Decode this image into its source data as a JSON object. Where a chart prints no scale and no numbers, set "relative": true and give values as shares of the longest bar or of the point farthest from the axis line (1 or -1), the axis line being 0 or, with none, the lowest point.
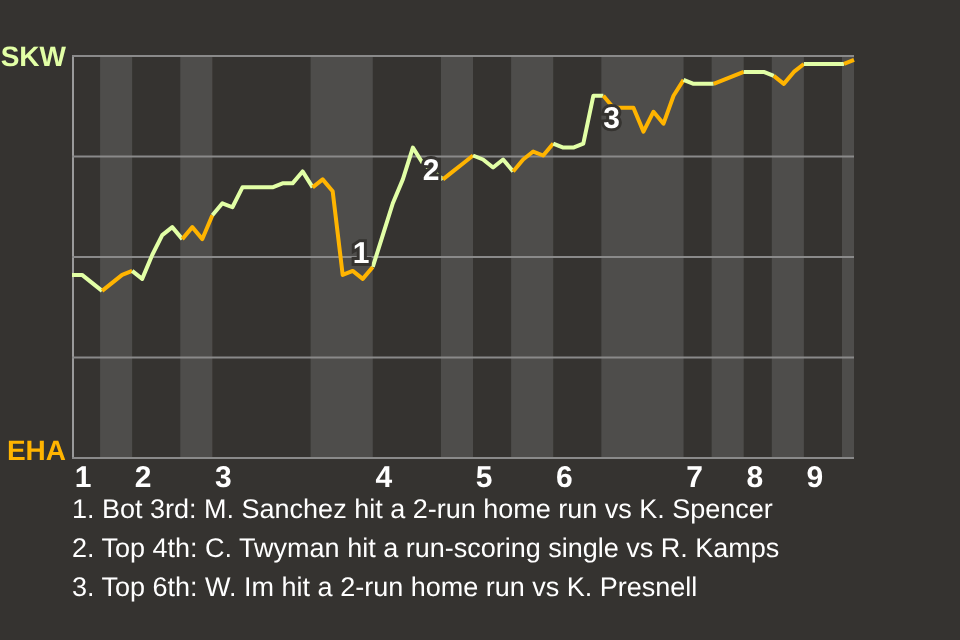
{
  "chart_data": {
    "type": "line",
    "relative": true,
    "categories": [
      null,
      "1",
      null,
      null,
      null,
      null,
      null,
      "2",
      null,
      null,
      null,
      null,
      null,
      null,
      null,
      "3",
      null,
      null,
      null,
      null,
      null,
      null,
      null,
      null,
      null,
      null,
      null,
      null,
      null,
      null,
      null,
      "4",
      null,
      null,
      null,
      null,
      null,
      null,
      null,
      null,
      null,
      "5",
      null,
      null,
      null,
      null,
      null,
      null,
      null,
      "6",
      null,
      null,
      null,
      null,
      null,
      null,
      null,
      null,
      null,
      null,
      null,
      null,
      "7",
      null,
      null,
      null,
      null,
      null,
      "8",
      null,
      null,
      null,
      null,
      null,
      "9",
      null,
      null,
      null,
      null
    ],
    "grid": "y",
    "marker": "none",
    "line_style": "solid",
    "series": [
      {
        "color": "#e2ffa6",
        "values": [
          0.46,
          0.46,
          0.44,
          0.42,
          null,
          null,
          null,
          null,
          null,
          null,
          null,
          null,
          null,
          null,
          null,
          null,
          null,
          null,
          null,
          null,
          null,
          null,
          null,
          null,
          null,
          null,
          null,
          null,
          null,
          null,
          null,
          null,
          null,
          null,
          null,
          null,
          null,
          null,
          null,
          null,
          null,
          null,
          null,
          null,
          null,
          null,
          null,
          null,
          null,
          null,
          null,
          null,
          null,
          null,
          null,
          null,
          null,
          null,
          null,
          null,
          null,
          null,
          null,
          null,
          null,
          null,
          null,
          null,
          null,
          null,
          null,
          null,
          null,
          null,
          null,
          null,
          null,
          null,
          null
        ]
      },
      {
        "color": "#ffb400",
        "values": [
          null,
          null,
          null,
          0.42,
          0.44,
          0.46,
          0.47,
          null,
          null,
          null,
          null,
          null,
          null,
          null,
          null,
          null,
          null,
          null,
          null,
          null,
          null,
          null,
          null,
          null,
          null,
          null,
          null,
          null,
          null,
          null,
          null,
          null,
          null,
          null,
          null,
          null,
          null,
          null,
          null,
          null,
          null,
          null,
          null,
          null,
          null,
          null,
          null,
          null,
          null,
          null,
          null,
          null,
          null,
          null,
          null,
          null,
          null,
          null,
          null,
          null,
          null,
          null,
          null,
          null,
          null,
          null,
          null,
          null,
          null,
          null,
          null,
          null,
          null,
          null,
          null,
          null,
          null,
          null,
          null
        ]
      },
      {
        "color": "#e2ffa6",
        "values": [
          null,
          null,
          null,
          null,
          null,
          null,
          0.47,
          0.45,
          0.51,
          0.56,
          0.58,
          0.55,
          null,
          null,
          null,
          null,
          null,
          null,
          null,
          null,
          null,
          null,
          null,
          null,
          null,
          null,
          null,
          null,
          null,
          null,
          null,
          null,
          null,
          null,
          null,
          null,
          null,
          null,
          null,
          null,
          null,
          null,
          null,
          null,
          null,
          null,
          null,
          null,
          null,
          null,
          null,
          null,
          null,
          null,
          null,
          null,
          null,
          null,
          null,
          null,
          null,
          null,
          null,
          null,
          null,
          null,
          null,
          null,
          null,
          null,
          null,
          null,
          null,
          null,
          null,
          null,
          null,
          null,
          null
        ]
      },
      {
        "color": "#ffb400",
        "values": [
          null,
          null,
          null,
          null,
          null,
          null,
          null,
          null,
          null,
          null,
          null,
          0.55,
          0.58,
          0.55,
          0.61,
          null,
          null,
          null,
          null,
          null,
          null,
          null,
          null,
          null,
          null,
          null,
          null,
          null,
          null,
          null,
          null,
          null,
          null,
          null,
          null,
          null,
          null,
          null,
          null,
          null,
          null,
          null,
          null,
          null,
          null,
          null,
          null,
          null,
          null,
          null,
          null,
          null,
          null,
          null,
          null,
          null,
          null,
          null,
          null,
          null,
          null,
          null,
          null,
          null,
          null,
          null,
          null,
          null,
          null,
          null,
          null,
          null,
          null,
          null,
          null,
          null,
          null,
          null,
          null
        ]
      },
      {
        "color": "#e2ffa6",
        "values": [
          null,
          null,
          null,
          null,
          null,
          null,
          null,
          null,
          null,
          null,
          null,
          null,
          null,
          null,
          0.61,
          0.64,
          0.63,
          0.68,
          0.68,
          0.68,
          0.68,
          0.69,
          0.69,
          0.72,
          0.68,
          null,
          null,
          null,
          null,
          null,
          null,
          null,
          null,
          null,
          null,
          null,
          null,
          null,
          null,
          null,
          null,
          null,
          null,
          null,
          null,
          null,
          null,
          null,
          null,
          null,
          null,
          null,
          null,
          null,
          null,
          null,
          null,
          null,
          null,
          null,
          null,
          null,
          null,
          null,
          null,
          null,
          null,
          null,
          null,
          null,
          null,
          null,
          null,
          null,
          null,
          null,
          null,
          null,
          null
        ]
      },
      {
        "color": "#ffb400",
        "values": [
          null,
          null,
          null,
          null,
          null,
          null,
          null,
          null,
          null,
          null,
          null,
          null,
          null,
          null,
          null,
          null,
          null,
          null,
          null,
          null,
          null,
          null,
          null,
          null,
          0.68,
          0.7,
          0.67,
          0.46,
          0.47,
          0.45,
          0.48,
          null,
          null,
          null,
          null,
          null,
          null,
          null,
          null,
          null,
          null,
          null,
          null,
          null,
          null,
          null,
          null,
          null,
          null,
          null,
          null,
          null,
          null,
          null,
          null,
          null,
          null,
          null,
          null,
          null,
          null,
          null,
          null,
          null,
          null,
          null,
          null,
          null,
          null,
          null,
          null,
          null,
          null,
          null,
          null,
          null,
          null,
          null,
          null
        ]
      },
      {
        "color": "#e2ffa6",
        "values": [
          null,
          null,
          null,
          null,
          null,
          null,
          null,
          null,
          null,
          null,
          null,
          null,
          null,
          null,
          null,
          null,
          null,
          null,
          null,
          null,
          null,
          null,
          null,
          null,
          null,
          null,
          null,
          null,
          null,
          null,
          0.48,
          0.56,
          0.64,
          0.7,
          0.78,
          0.74,
          0.72,
          0.7,
          null,
          null,
          null,
          null,
          null,
          null,
          null,
          null,
          null,
          null,
          null,
          null,
          null,
          null,
          null,
          null,
          null,
          null,
          null,
          null,
          null,
          null,
          null,
          null,
          null,
          null,
          null,
          null,
          null,
          null,
          null,
          null,
          null,
          null,
          null,
          null,
          null,
          null,
          null,
          null,
          null
        ]
      },
      {
        "color": "#ffb400",
        "values": [
          null,
          null,
          null,
          null,
          null,
          null,
          null,
          null,
          null,
          null,
          null,
          null,
          null,
          null,
          null,
          null,
          null,
          null,
          null,
          null,
          null,
          null,
          null,
          null,
          null,
          null,
          null,
          null,
          null,
          null,
          null,
          null,
          null,
          null,
          null,
          null,
          null,
          0.7,
          0.72,
          0.74,
          0.76,
          null,
          null,
          null,
          null,
          null,
          null,
          null,
          null,
          null,
          null,
          null,
          null,
          null,
          null,
          null,
          null,
          null,
          null,
          null,
          null,
          null,
          null,
          null,
          null,
          null,
          null,
          null,
          null,
          null,
          null,
          null,
          null,
          null,
          null,
          null,
          null,
          null,
          null
        ]
      },
      {
        "color": "#e2ffa6",
        "values": [
          null,
          null,
          null,
          null,
          null,
          null,
          null,
          null,
          null,
          null,
          null,
          null,
          null,
          null,
          null,
          null,
          null,
          null,
          null,
          null,
          null,
          null,
          null,
          null,
          null,
          null,
          null,
          null,
          null,
          null,
          null,
          null,
          null,
          null,
          null,
          null,
          null,
          null,
          null,
          null,
          0.76,
          0.75,
          0.73,
          0.75,
          0.72,
          null,
          null,
          null,
          null,
          null,
          null,
          null,
          null,
          null,
          null,
          null,
          null,
          null,
          null,
          null,
          null,
          null,
          null,
          null,
          null,
          null,
          null,
          null,
          null,
          null,
          null,
          null,
          null,
          null,
          null,
          null,
          null,
          null,
          null
        ]
      },
      {
        "color": "#ffb400",
        "values": [
          null,
          null,
          null,
          null,
          null,
          null,
          null,
          null,
          null,
          null,
          null,
          null,
          null,
          null,
          null,
          null,
          null,
          null,
          null,
          null,
          null,
          null,
          null,
          null,
          null,
          null,
          null,
          null,
          null,
          null,
          null,
          null,
          null,
          null,
          null,
          null,
          null,
          null,
          null,
          null,
          null,
          null,
          null,
          null,
          0.72,
          0.75,
          0.77,
          0.76,
          0.79,
          null,
          null,
          null,
          null,
          null,
          null,
          null,
          null,
          null,
          null,
          null,
          null,
          null,
          null,
          null,
          null,
          null,
          null,
          null,
          null,
          null,
          null,
          null,
          null,
          null,
          null,
          null,
          null,
          null,
          null
        ]
      },
      {
        "color": "#e2ffa6",
        "values": [
          null,
          null,
          null,
          null,
          null,
          null,
          null,
          null,
          null,
          null,
          null,
          null,
          null,
          null,
          null,
          null,
          null,
          null,
          null,
          null,
          null,
          null,
          null,
          null,
          null,
          null,
          null,
          null,
          null,
          null,
          null,
          null,
          null,
          null,
          null,
          null,
          null,
          null,
          null,
          null,
          null,
          null,
          null,
          null,
          null,
          null,
          null,
          null,
          0.79,
          0.78,
          0.78,
          0.79,
          0.91,
          0.91,
          null,
          null,
          null,
          null,
          null,
          null,
          null,
          null,
          null,
          null,
          null,
          null,
          null,
          null,
          null,
          null,
          null,
          null,
          null,
          null,
          null,
          null,
          null,
          null,
          null
        ]
      },
      {
        "color": "#ffb400",
        "values": [
          null,
          null,
          null,
          null,
          null,
          null,
          null,
          null,
          null,
          null,
          null,
          null,
          null,
          null,
          null,
          null,
          null,
          null,
          null,
          null,
          null,
          null,
          null,
          null,
          null,
          null,
          null,
          null,
          null,
          null,
          null,
          null,
          null,
          null,
          null,
          null,
          null,
          null,
          null,
          null,
          null,
          null,
          null,
          null,
          null,
          null,
          null,
          null,
          null,
          null,
          null,
          null,
          null,
          0.91,
          0.88,
          0.88,
          0.88,
          0.82,
          0.87,
          0.84,
          0.91,
          0.95,
          null,
          null,
          null,
          null,
          null,
          null,
          null,
          null,
          null,
          null,
          null,
          null,
          null,
          null,
          null,
          null,
          null
        ]
      },
      {
        "color": "#e2ffa6",
        "values": [
          null,
          null,
          null,
          null,
          null,
          null,
          null,
          null,
          null,
          null,
          null,
          null,
          null,
          null,
          null,
          null,
          null,
          null,
          null,
          null,
          null,
          null,
          null,
          null,
          null,
          null,
          null,
          null,
          null,
          null,
          null,
          null,
          null,
          null,
          null,
          null,
          null,
          null,
          null,
          null,
          null,
          null,
          null,
          null,
          null,
          null,
          null,
          null,
          null,
          null,
          null,
          null,
          null,
          null,
          null,
          null,
          null,
          null,
          null,
          null,
          null,
          0.95,
          0.94,
          0.94,
          0.94,
          null,
          null,
          null,
          null,
          null,
          null,
          null,
          null,
          null,
          null,
          null,
          null,
          null,
          null
        ]
      },
      {
        "color": "#ffb400",
        "values": [
          null,
          null,
          null,
          null,
          null,
          null,
          null,
          null,
          null,
          null,
          null,
          null,
          null,
          null,
          null,
          null,
          null,
          null,
          null,
          null,
          null,
          null,
          null,
          null,
          null,
          null,
          null,
          null,
          null,
          null,
          null,
          null,
          null,
          null,
          null,
          null,
          null,
          null,
          null,
          null,
          null,
          null,
          null,
          null,
          null,
          null,
          null,
          null,
          null,
          null,
          null,
          null,
          null,
          null,
          null,
          null,
          null,
          null,
          null,
          null,
          null,
          null,
          null,
          null,
          0.94,
          0.95,
          0.96,
          0.97,
          null,
          null,
          null,
          null,
          null,
          null,
          null,
          null,
          null,
          null,
          null
        ]
      },
      {
        "color": "#e2ffa6",
        "values": [
          null,
          null,
          null,
          null,
          null,
          null,
          null,
          null,
          null,
          null,
          null,
          null,
          null,
          null,
          null,
          null,
          null,
          null,
          null,
          null,
          null,
          null,
          null,
          null,
          null,
          null,
          null,
          null,
          null,
          null,
          null,
          null,
          null,
          null,
          null,
          null,
          null,
          null,
          null,
          null,
          null,
          null,
          null,
          null,
          null,
          null,
          null,
          null,
          null,
          null,
          null,
          null,
          null,
          null,
          null,
          null,
          null,
          null,
          null,
          null,
          null,
          null,
          null,
          null,
          null,
          null,
          null,
          0.97,
          0.97,
          0.97,
          0.96,
          null,
          null,
          null,
          null,
          null,
          null,
          null,
          null
        ]
      },
      {
        "color": "#ffb400",
        "values": [
          null,
          null,
          null,
          null,
          null,
          null,
          null,
          null,
          null,
          null,
          null,
          null,
          null,
          null,
          null,
          null,
          null,
          null,
          null,
          null,
          null,
          null,
          null,
          null,
          null,
          null,
          null,
          null,
          null,
          null,
          null,
          null,
          null,
          null,
          null,
          null,
          null,
          null,
          null,
          null,
          null,
          null,
          null,
          null,
          null,
          null,
          null,
          null,
          null,
          null,
          null,
          null,
          null,
          null,
          null,
          null,
          null,
          null,
          null,
          null,
          null,
          null,
          null,
          null,
          null,
          null,
          null,
          null,
          null,
          null,
          0.96,
          0.94,
          0.97,
          0.99,
          null,
          null,
          null,
          null,
          null
        ]
      },
      {
        "color": "#e2ffa6",
        "values": [
          null,
          null,
          null,
          null,
          null,
          null,
          null,
          null,
          null,
          null,
          null,
          null,
          null,
          null,
          null,
          null,
          null,
          null,
          null,
          null,
          null,
          null,
          null,
          null,
          null,
          null,
          null,
          null,
          null,
          null,
          null,
          null,
          null,
          null,
          null,
          null,
          null,
          null,
          null,
          null,
          null,
          null,
          null,
          null,
          null,
          null,
          null,
          null,
          null,
          null,
          null,
          null,
          null,
          null,
          null,
          null,
          null,
          null,
          null,
          null,
          null,
          null,
          null,
          null,
          null,
          null,
          null,
          null,
          null,
          null,
          null,
          null,
          null,
          0.99,
          0.99,
          0.99,
          0.99,
          0.99,
          null
        ]
      },
      {
        "color": "#ffb400",
        "values": [
          null,
          null,
          null,
          null,
          null,
          null,
          null,
          null,
          null,
          null,
          null,
          null,
          null,
          null,
          null,
          null,
          null,
          null,
          null,
          null,
          null,
          null,
          null,
          null,
          null,
          null,
          null,
          null,
          null,
          null,
          null,
          null,
          null,
          null,
          null,
          null,
          null,
          null,
          null,
          null,
          null,
          null,
          null,
          null,
          null,
          null,
          null,
          null,
          null,
          null,
          null,
          null,
          null,
          null,
          null,
          null,
          null,
          null,
          null,
          null,
          null,
          null,
          null,
          null,
          null,
          null,
          null,
          null,
          null,
          null,
          null,
          null,
          null,
          null,
          null,
          null,
          null,
          0.99,
          1
        ]
      }
    ],
    "annotations": [
      "SKW",
      "EHA",
      "1",
      "2",
      "3",
      "1. Bot 3rd: M. Sanchez hit a 2-run home run vs K. Spencer",
      "2. Top 4th: C. Twyman hit a run-scoring single vs R. Kamps",
      "3. Top 6th: W. Im hit a 2-run home run vs K. Presnell"
    ]
  }
}
